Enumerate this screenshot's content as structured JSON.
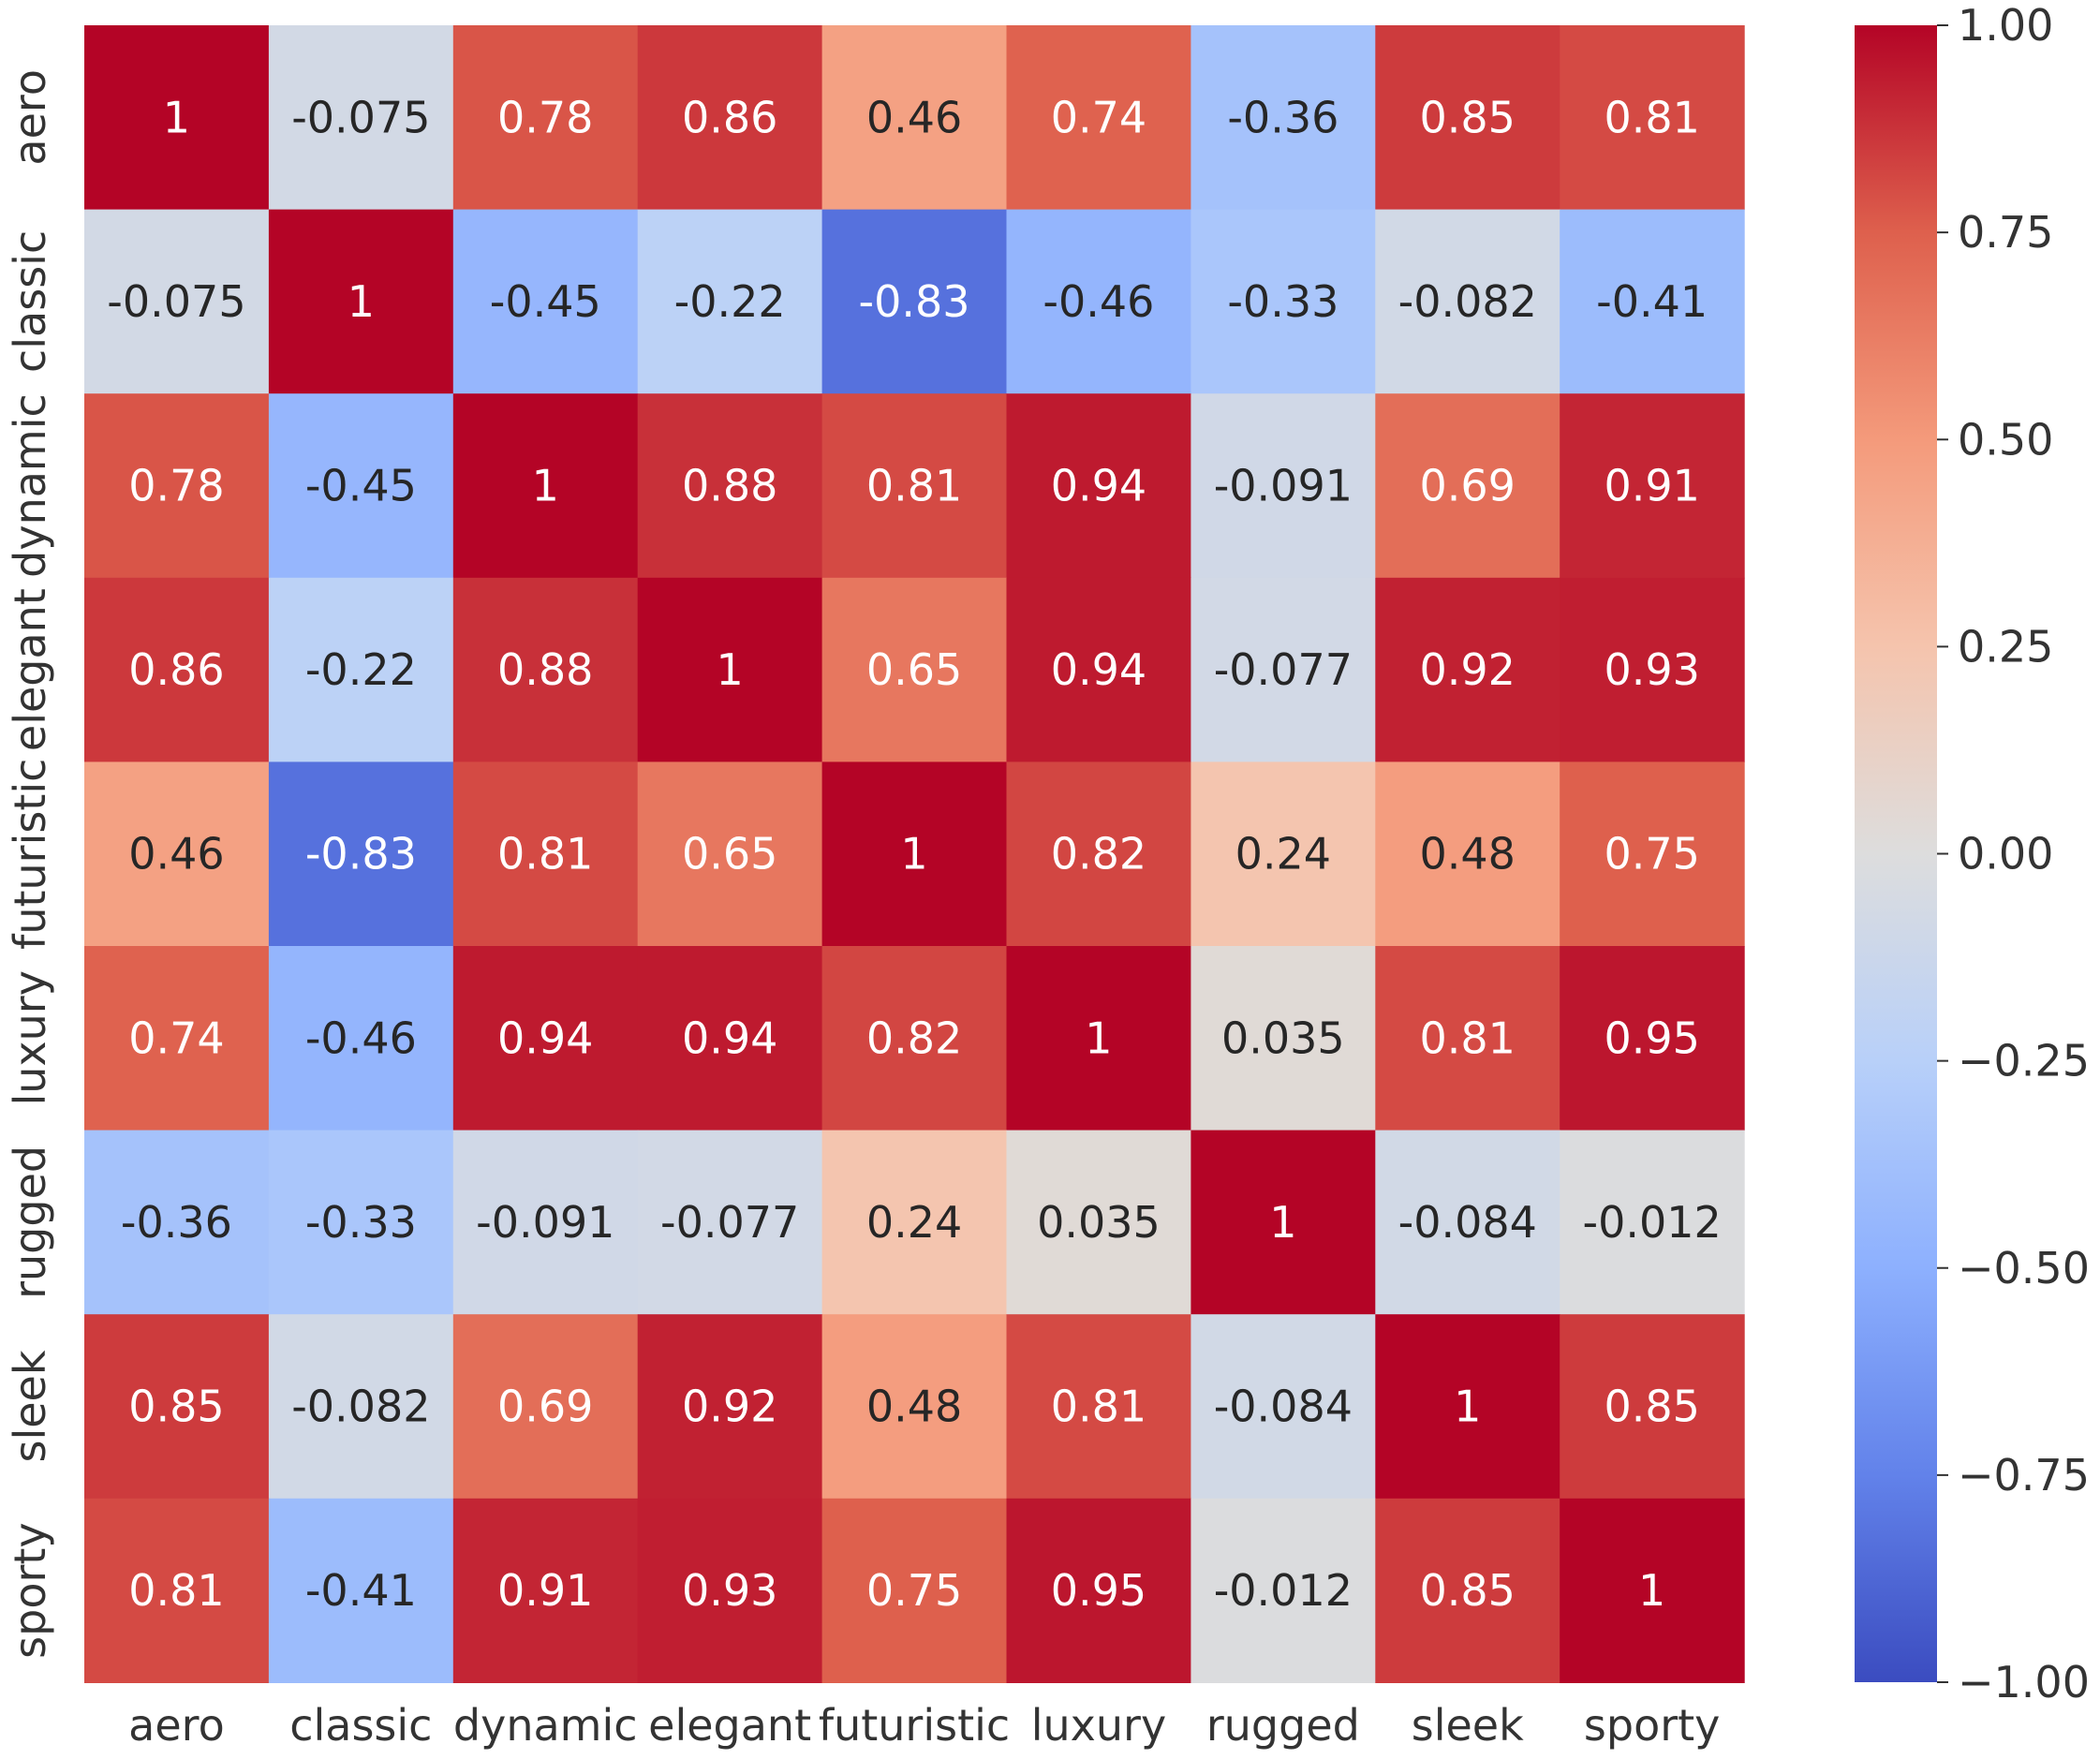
{
  "chart_data": {
    "type": "heatmap",
    "title": "",
    "xlabel": "",
    "ylabel": "",
    "categories": [
      "aero",
      "classic",
      "dynamic",
      "elegant",
      "futuristic",
      "luxury",
      "rugged",
      "sleek",
      "sporty"
    ],
    "values": [
      [
        1,
        -0.075,
        0.78,
        0.86,
        0.46,
        0.74,
        -0.36,
        0.85,
        0.81
      ],
      [
        -0.075,
        1,
        -0.45,
        -0.22,
        -0.83,
        -0.46,
        -0.33,
        -0.082,
        -0.41
      ],
      [
        0.78,
        -0.45,
        1,
        0.88,
        0.81,
        0.94,
        -0.091,
        0.69,
        0.91
      ],
      [
        0.86,
        -0.22,
        0.88,
        1,
        0.65,
        0.94,
        -0.077,
        0.92,
        0.93
      ],
      [
        0.46,
        -0.83,
        0.81,
        0.65,
        1,
        0.82,
        0.24,
        0.48,
        0.75
      ],
      [
        0.74,
        -0.46,
        0.94,
        0.94,
        0.82,
        1,
        0.035,
        0.81,
        0.95
      ],
      [
        -0.36,
        -0.33,
        -0.091,
        -0.077,
        0.24,
        0.035,
        1,
        -0.084,
        -0.012
      ],
      [
        0.85,
        -0.082,
        0.69,
        0.92,
        0.48,
        0.81,
        -0.084,
        1,
        0.85
      ],
      [
        0.81,
        -0.41,
        0.91,
        0.93,
        0.75,
        0.95,
        -0.012,
        0.85,
        1
      ]
    ],
    "annotations": [
      [
        "1",
        "-0.075",
        "0.78",
        "0.86",
        "0.46",
        "0.74",
        "-0.36",
        "0.85",
        "0.81"
      ],
      [
        "-0.075",
        "1",
        "-0.45",
        "-0.22",
        "-0.83",
        "-0.46",
        "-0.33",
        "-0.082",
        "-0.41"
      ],
      [
        "0.78",
        "-0.45",
        "1",
        "0.88",
        "0.81",
        "0.94",
        "-0.091",
        "0.69",
        "0.91"
      ],
      [
        "0.86",
        "-0.22",
        "0.88",
        "1",
        "0.65",
        "0.94",
        "-0.077",
        "0.92",
        "0.93"
      ],
      [
        "0.46",
        "-0.83",
        "0.81",
        "0.65",
        "1",
        "0.82",
        "0.24",
        "0.48",
        "0.75"
      ],
      [
        "0.74",
        "-0.46",
        "0.94",
        "0.94",
        "0.82",
        "1",
        "0.035",
        "0.81",
        "0.95"
      ],
      [
        "-0.36",
        "-0.33",
        "-0.091",
        "-0.077",
        "0.24",
        "0.035",
        "1",
        "-0.084",
        "-0.012"
      ],
      [
        "0.85",
        "-0.082",
        "0.69",
        "0.92",
        "0.48",
        "0.81",
        "-0.084",
        "1",
        "0.85"
      ],
      [
        "0.81",
        "-0.41",
        "0.91",
        "0.93",
        "0.75",
        "0.95",
        "-0.012",
        "0.85",
        "1"
      ]
    ],
    "colormap": "coolwarm",
    "vmin": -1,
    "vmax": 1,
    "colorbar": {
      "ticks": [
        1,
        0.75,
        0.5,
        0.25,
        0,
        -0.25,
        -0.5,
        -0.75,
        -1
      ],
      "tick_labels": [
        "1.00",
        "0.75",
        "0.50",
        "0.25",
        "0.00",
        "−0.25",
        "−0.50",
        "−0.75",
        "−1.00"
      ],
      "position": "right"
    },
    "light_text_color": "#ffffff",
    "dark_text_color": "#262626"
  }
}
